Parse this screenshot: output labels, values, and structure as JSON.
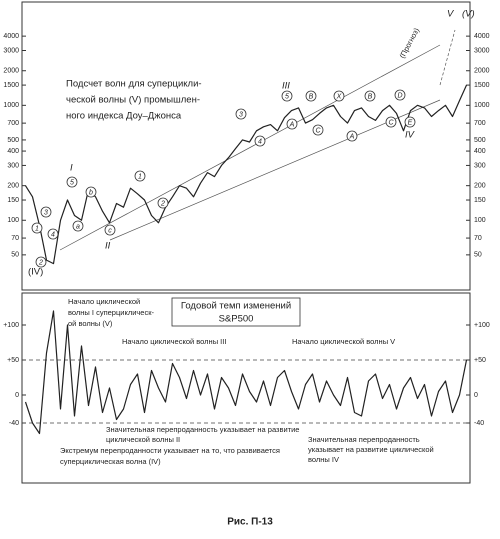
{
  "chart_data": [
    {
      "type": "line",
      "log_scale": true,
      "color": "#222222",
      "title_lines": [
        "Подсчет волн для суперцикли-",
        "ческой волны (V) промышлен-",
        "ного индекса Доу–Джонса"
      ],
      "categories": [
        null,
        null,
        null,
        null,
        null,
        null,
        null,
        null,
        null,
        null,
        null,
        null,
        null,
        null,
        null,
        null,
        null,
        null,
        null,
        null,
        null,
        null,
        null,
        null,
        null,
        null,
        null,
        null,
        null,
        null,
        null,
        null,
        null,
        null,
        null,
        null,
        null,
        null,
        null,
        null,
        null,
        null,
        null,
        null,
        null,
        null,
        null,
        null,
        null,
        null,
        null,
        null,
        null,
        null,
        null,
        null,
        null,
        null,
        null,
        null,
        null,
        null,
        null,
        null
      ],
      "values": [
        200,
        160,
        90,
        45,
        42,
        100,
        150,
        110,
        100,
        185,
        160,
        120,
        95,
        140,
        130,
        190,
        170,
        150,
        110,
        95,
        130,
        160,
        200,
        190,
        160,
        210,
        260,
        240,
        300,
        350,
        420,
        500,
        480,
        600,
        650,
        680,
        600,
        780,
        900,
        950,
        700,
        750,
        850,
        950,
        1000,
        800,
        700,
        900,
        950,
        800,
        740,
        900,
        1000,
        850,
        600,
        900,
        1000,
        950,
        800,
        900,
        1000,
        800,
        1100,
        1500
      ],
      "ylim": [
        40,
        5000
      ],
      "yticks": [
        50,
        70,
        100,
        150,
        200,
        300,
        400,
        500,
        700,
        1000,
        1500,
        2000,
        3000,
        4000
      ],
      "annotations": [
        "(IV)",
        "I",
        "II",
        "III",
        "IV",
        "V",
        "(V)",
        "(Прогноз)"
      ],
      "wave_labels": [
        "1",
        "2",
        "3",
        "4",
        "5",
        "a",
        "b",
        "c",
        "1",
        "2",
        "3",
        "4",
        "5",
        "A",
        "B",
        "C",
        "X",
        "A",
        "B",
        "C",
        "D",
        "E"
      ]
    },
    {
      "type": "line",
      "color": "#222222",
      "title_lines": [
        "Годовой темп изменений",
        "S&P500"
      ],
      "categories": [
        null,
        null,
        null,
        null,
        null,
        null,
        null,
        null,
        null,
        null,
        null,
        null,
        null,
        null,
        null,
        null,
        null,
        null,
        null,
        null,
        null,
        null,
        null,
        null,
        null,
        null,
        null,
        null,
        null,
        null,
        null,
        null,
        null,
        null,
        null,
        null,
        null,
        null,
        null,
        null,
        null,
        null,
        null,
        null,
        null,
        null,
        null,
        null,
        null,
        null,
        null,
        null,
        null,
        null,
        null,
        null,
        null,
        null,
        null,
        null,
        null,
        null,
        null,
        null
      ],
      "values": [
        -10,
        -40,
        -55,
        60,
        120,
        -20,
        100,
        -30,
        70,
        -15,
        40,
        -25,
        10,
        -35,
        -20,
        15,
        30,
        -25,
        35,
        10,
        -10,
        45,
        25,
        -5,
        35,
        0,
        30,
        -20,
        25,
        10,
        -15,
        30,
        5,
        -10,
        20,
        -15,
        25,
        35,
        5,
        -20,
        15,
        30,
        -10,
        20,
        0,
        -15,
        25,
        -25,
        -30,
        20,
        30,
        -5,
        15,
        -20,
        10,
        25,
        -5,
        15,
        -30,
        5,
        20,
        -25,
        0,
        50
      ],
      "ylim": [
        -80,
        140
      ],
      "yticks": [
        -40,
        0,
        {
          "value": 50,
          "label": "+50"
        },
        {
          "value": 100,
          "label": "+100"
        }
      ],
      "reference_lines": [
        50,
        -40
      ],
      "annotations": [
        [
          "Начало циклической",
          "волны I суперциклическ-",
          "ой волны (V)"
        ],
        [
          "Начало циклической волны III"
        ],
        [
          "Начало циклической волны V"
        ],
        [
          "Значительная перепроданность указывает на развитие",
          "циклической волны II"
        ],
        [
          "Экстремум перепроданности указывает на то, что развивается",
          "суперциклическая волна (IV)"
        ],
        [
          "Значительная перепроданность",
          "указывает на развитие циклической",
          "волны IV"
        ]
      ]
    }
  ],
  "caption": "Рис. П-13"
}
